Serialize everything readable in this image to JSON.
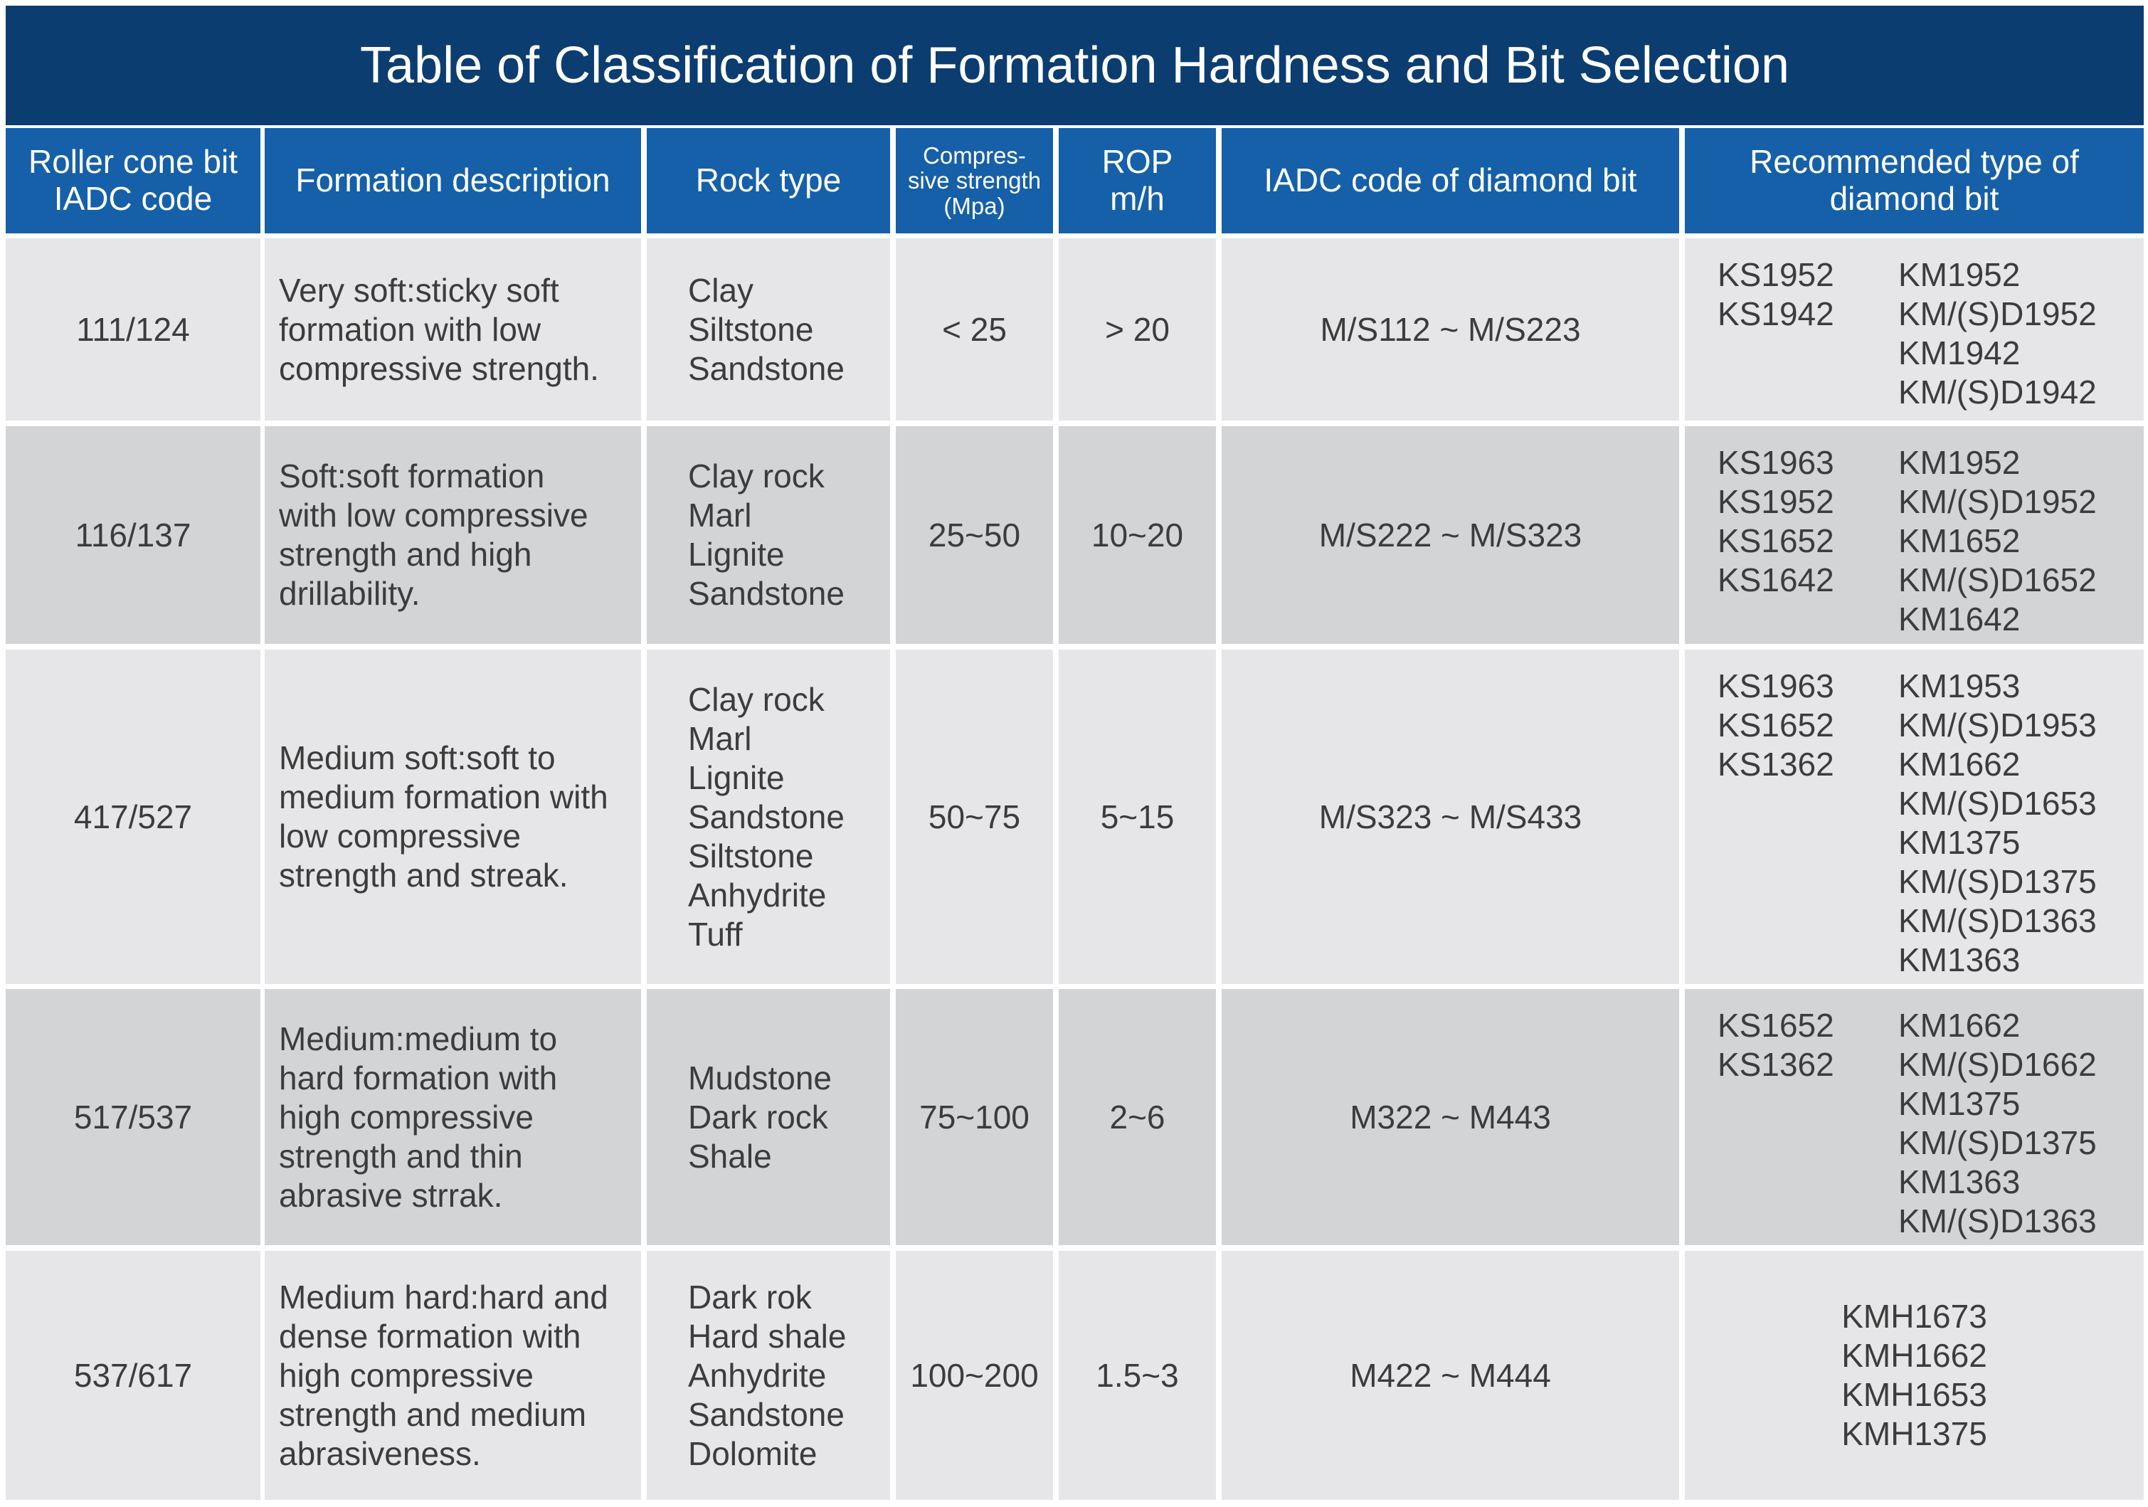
{
  "title": "Table of Classification of Formation Hardness and Bit Selection",
  "headers": [
    "Roller cone bit IADC code",
    "Formation description",
    "Rock type",
    "Compres-sive strength (Mpa)",
    "ROP m/h",
    "IADC code of diamond bit",
    "Recommended type of diamond bit"
  ],
  "header_lines": {
    "roller": [
      "Roller cone bit",
      "IADC code"
    ],
    "compressive": [
      "Compres-",
      "sive strength",
      "(Mpa)"
    ],
    "rop": [
      "ROP",
      "m/h"
    ],
    "recommended": [
      "Recommended type of",
      "diamond bit"
    ]
  },
  "rows": [
    {
      "iadc": "111/124",
      "desc": [
        "Very soft:sticky soft",
        "formation with low",
        "compressive strength."
      ],
      "rock": [
        "Clay",
        "Siltstone",
        "Sandstone"
      ],
      "strength": "< 25",
      "rop": "> 20",
      "diamond_iadc": "M/S112 ~ M/S223",
      "ks": [
        "KS1952",
        "KS1942"
      ],
      "km": [
        "KM1952",
        "KM/(S)D1952",
        "KM1942",
        "KM/(S)D1942"
      ]
    },
    {
      "iadc": "116/137",
      "desc": [
        "Soft:soft formation",
        "with low compressive",
        "strength and high",
        "drillability."
      ],
      "rock": [
        "Clay rock",
        "Marl",
        "Lignite",
        "Sandstone"
      ],
      "strength": "25~50",
      "rop": "10~20",
      "diamond_iadc": "M/S222 ~ M/S323",
      "ks": [
        "KS1963",
        "KS1952",
        "KS1652",
        "KS1642"
      ],
      "km": [
        "KM1952",
        "KM/(S)D1952",
        "KM1652",
        "KM/(S)D1652",
        "KM1642"
      ]
    },
    {
      "iadc": "417/527",
      "desc": [
        "Medium soft:soft to",
        "medium formation with",
        "low compressive",
        "strength and streak."
      ],
      "rock": [
        "Clay rock",
        "Marl",
        "Lignite",
        "Sandstone",
        "Siltstone",
        "Anhydrite",
        "Tuff"
      ],
      "strength": "50~75",
      "rop": "5~15",
      "diamond_iadc": "M/S323 ~ M/S433",
      "ks": [
        "KS1963",
        "KS1652",
        "KS1362"
      ],
      "km": [
        "KM1953",
        "KM/(S)D1953",
        "KM1662",
        "KM/(S)D1653",
        "KM1375",
        "KM/(S)D1375",
        "KM/(S)D1363",
        "KM1363"
      ]
    },
    {
      "iadc": "517/537",
      "desc": [
        "Medium:medium to",
        "hard formation with",
        "high compressive",
        "strength and thin",
        "abrasive strrak."
      ],
      "rock": [
        "Mudstone",
        "Dark rock",
        "Shale"
      ],
      "strength": "75~100",
      "rop": "2~6",
      "diamond_iadc": "M322 ~ M443",
      "ks": [
        "KS1652",
        "KS1362"
      ],
      "km": [
        "KM1662",
        "KM/(S)D1662",
        "KM1375",
        "KM/(S)D1375",
        "KM1363",
        "KM/(S)D1363"
      ]
    },
    {
      "iadc": "537/617",
      "desc": [
        "Medium hard:hard and",
        "dense formation with",
        "high compressive",
        "strength and medium",
        "abrasiveness."
      ],
      "rock": [
        "Dark rok",
        "Hard shale",
        "Anhydrite",
        "Sandstone",
        "Dolomite"
      ],
      "strength": "100~200",
      "rop": "1.5~3",
      "diamond_iadc": "M422 ~ M444",
      "ks": [],
      "km": [
        "KMH1673",
        "KMH1662",
        "KMH1653",
        "KMH1375"
      ]
    }
  ],
  "colors": {
    "title_bg": "#0b3d70",
    "header_bg": "#1560a8",
    "row_light": "#e6e6e8",
    "row_dark": "#d3d4d6",
    "text": "#3c3c3c"
  }
}
